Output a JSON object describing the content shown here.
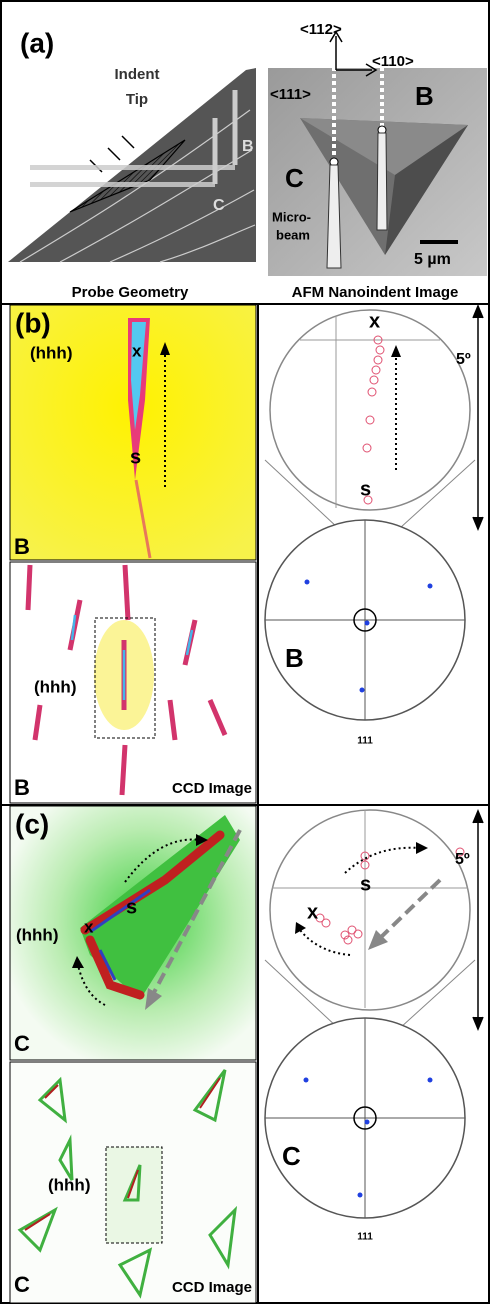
{
  "panel_a": {
    "label": "(a)",
    "probe_geometry": {
      "indent_label": "Indent",
      "tip_label": "Tip",
      "beam_b": "B",
      "beam_c": "C",
      "caption": "Probe Geometry"
    },
    "afm_image": {
      "dir_112": "<112>",
      "dir_110": "<110>",
      "dir_111": "<111>",
      "region_b": "B",
      "region_c": "C",
      "microbeam_line1": "Micro-",
      "microbeam_line2": "beam",
      "scale": "5 µm",
      "caption": "AFM Nanoindent Image"
    }
  },
  "panel_b": {
    "label": "(b)",
    "laue_zoom": {
      "peak_label": "(hhh)",
      "start": "x",
      "end": "s",
      "position": "B"
    },
    "ccd_image": {
      "peak_label": "(hhh)",
      "position": "B",
      "caption": "CCD Image"
    },
    "stereo_zoom": {
      "start": "x",
      "end": "s",
      "angle": "5º"
    },
    "stereo_projection": {
      "position": "B",
      "pole": "111"
    }
  },
  "panel_c": {
    "label": "(c)",
    "laue_zoom": {
      "peak_label": "(hhh)",
      "start": "x",
      "end": "s",
      "position": "C"
    },
    "ccd_image": {
      "peak_label": "(hhh)",
      "position": "C",
      "caption": "CCD Image"
    },
    "stereo_zoom": {
      "start": "x",
      "end": "s",
      "angle": "5º"
    },
    "stereo_projection": {
      "position": "C",
      "pole": "111"
    }
  }
}
